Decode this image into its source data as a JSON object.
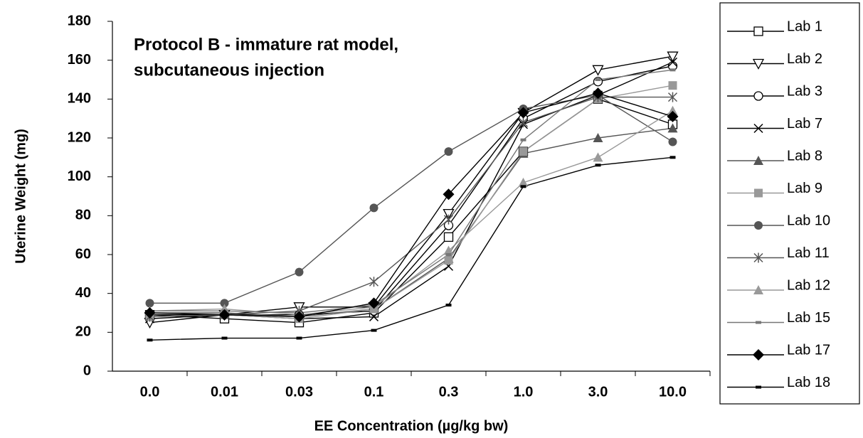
{
  "chart_data": {
    "type": "line",
    "annotation": [
      "Protocol B - immature rat model,",
      "subcutaneous injection"
    ],
    "x_label": "EE Concentration (µg/kg bw)",
    "y_label": "Uterine Weight (mg)",
    "categories": [
      "0.0",
      "0.01",
      "0.03",
      "0.1",
      "0.3",
      "1.0",
      "3.0",
      "10.0"
    ],
    "ylim": [
      0,
      180
    ],
    "yticks": [
      0,
      20,
      40,
      60,
      80,
      100,
      120,
      140,
      160,
      180
    ],
    "series": [
      {
        "name": "Lab 1",
        "color": "#000000",
        "marker": "square-open",
        "values": [
          29,
          27,
          25,
          30,
          69,
          113,
          140,
          127
        ]
      },
      {
        "name": "Lab 2",
        "color": "#000000",
        "marker": "triangle-down-open",
        "values": [
          25,
          29,
          33,
          33,
          81,
          133,
          155,
          162
        ]
      },
      {
        "name": "Lab 3",
        "color": "#000000",
        "marker": "circle-open",
        "values": [
          29,
          29,
          29,
          31,
          75,
          130,
          149,
          157
        ]
      },
      {
        "name": "Lab 7",
        "color": "#000000",
        "marker": "x",
        "values": [
          27,
          29,
          27,
          28,
          54,
          127,
          142,
          159
        ]
      },
      {
        "name": "Lab 8",
        "color": "#555555",
        "marker": "triangle",
        "values": [
          30,
          30,
          28,
          32,
          58,
          112,
          120,
          125
        ]
      },
      {
        "name": "Lab 9",
        "color": "#999999",
        "marker": "square",
        "values": [
          28,
          29,
          27,
          32,
          57,
          113,
          140,
          147
        ]
      },
      {
        "name": "Lab 10",
        "color": "#555555",
        "marker": "circle",
        "values": [
          35,
          35,
          51,
          84,
          113,
          135,
          142,
          118
        ]
      },
      {
        "name": "Lab 11",
        "color": "#555555",
        "marker": "asterisk",
        "values": [
          28,
          29,
          31,
          46,
          78,
          128,
          141,
          141
        ]
      },
      {
        "name": "Lab 12",
        "color": "#999999",
        "marker": "triangle",
        "values": [
          31,
          32,
          29,
          33,
          62,
          97,
          110,
          134
        ]
      },
      {
        "name": "Lab 15",
        "color": "#777777",
        "marker": "dash",
        "values": [
          31,
          31,
          30,
          34,
          60,
          119,
          150,
          155
        ]
      },
      {
        "name": "Lab 17",
        "color": "#000000",
        "marker": "diamond",
        "values": [
          30,
          29,
          28,
          35,
          91,
          133,
          143,
          131
        ]
      },
      {
        "name": "Lab 18",
        "color": "#000000",
        "marker": "dash",
        "values": [
          16,
          17,
          17,
          21,
          34,
          95,
          106,
          110
        ]
      }
    ]
  }
}
